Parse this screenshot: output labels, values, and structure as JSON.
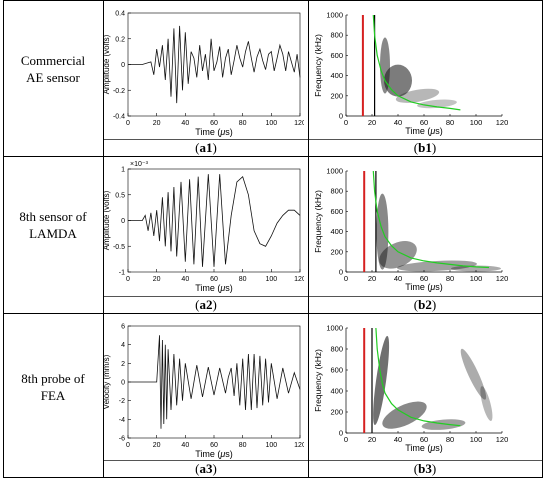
{
  "rows": [
    {
      "label_lines": [
        "Commercial",
        "AE sensor"
      ],
      "left_caption": {
        "open": "(",
        "letter": "a1",
        "close": ")"
      },
      "right_caption": {
        "open": "(",
        "letter": "b1",
        "close": ")"
      },
      "left_plot": {
        "ylabel": "Amplitude (volts)",
        "xlabel_prefix": "Time (",
        "xlabel_mu": "μ",
        "xlabel_suffix": "s)",
        "exponent": "",
        "xticks": [
          "0",
          "20",
          "40",
          "60",
          "80",
          "100",
          "120"
        ],
        "yticks": [
          "0.4",
          "0.2",
          "0",
          "-0.2",
          "-0.4"
        ]
      },
      "right_plot": {
        "ylabel": "Frequency (kHz)",
        "xlabel_prefix": "Time (",
        "xlabel_mu": "μ",
        "xlabel_suffix": "s)",
        "xticks": [
          "0",
          "20",
          "40",
          "60",
          "80",
          "100",
          "120"
        ],
        "yticks": [
          "1000",
          "800",
          "600",
          "400",
          "200",
          "0"
        ]
      }
    },
    {
      "label_lines": [
        "8th sensor of",
        "LAMDA"
      ],
      "left_caption": {
        "open": "(",
        "letter": "a2",
        "close": ")"
      },
      "right_caption": {
        "open": "(",
        "letter": "b2",
        "close": ")"
      },
      "left_plot": {
        "ylabel": "Amplitude (volts)",
        "xlabel_prefix": "Time (",
        "xlabel_mu": "μ",
        "xlabel_suffix": "s)",
        "exponent": "×10⁻³",
        "xticks": [
          "0",
          "20",
          "40",
          "60",
          "80",
          "100",
          "120"
        ],
        "yticks": [
          "1",
          "0.5",
          "0",
          "-0.5",
          "-1"
        ]
      },
      "right_plot": {
        "ylabel": "Frequency (kHz)",
        "xlabel_prefix": "Time (",
        "xlabel_mu": "μ",
        "xlabel_suffix": "s)",
        "xticks": [
          "0",
          "20",
          "40",
          "60",
          "80",
          "100",
          "120"
        ],
        "yticks": [
          "1000",
          "800",
          "600",
          "400",
          "200",
          "0"
        ]
      }
    },
    {
      "label_lines": [
        "8th probe of",
        "FEA"
      ],
      "left_caption": {
        "open": "(",
        "letter": "a3",
        "close": ")"
      },
      "right_caption": {
        "open": "(",
        "letter": "b3",
        "close": ")"
      },
      "left_plot": {
        "ylabel": "Velocity (mm/s)",
        "xlabel_prefix": "Time (",
        "xlabel_mu": "μ",
        "xlabel_suffix": "s)",
        "exponent": "",
        "xticks": [
          "0",
          "20",
          "40",
          "60",
          "80",
          "100",
          "120"
        ],
        "yticks": [
          "6",
          "4",
          "2",
          "0",
          "-2",
          "-4",
          "-6"
        ]
      },
      "right_plot": {
        "ylabel": "Frequency (kHz)",
        "xlabel_prefix": "Time (",
        "xlabel_mu": "μ",
        "xlabel_suffix": "s)",
        "xticks": [
          "0",
          "20",
          "40",
          "60",
          "80",
          "100",
          "120"
        ],
        "yticks": [
          "1000",
          "800",
          "600",
          "400",
          "200",
          "0"
        ]
      }
    }
  ],
  "colors": {
    "red_line": "#d62020",
    "green_curve": "#22cc22",
    "black_line": "#000000",
    "waveform": "#111111"
  },
  "chart_data": [
    {
      "type": "line",
      "name": "a1",
      "xlim": [
        0,
        120
      ],
      "ylim": [
        -0.4,
        0.4
      ],
      "x": [
        0,
        10,
        16,
        18,
        20,
        22,
        24,
        26,
        28,
        30,
        32,
        34,
        36,
        38,
        40,
        42,
        44,
        46,
        48,
        50,
        52,
        54,
        56,
        58,
        60,
        62,
        64,
        66,
        68,
        70,
        72,
        74,
        76,
        78,
        80,
        82,
        84,
        86,
        88,
        90,
        92,
        94,
        96,
        98,
        100,
        102,
        104,
        106,
        108,
        110,
        112,
        114,
        116,
        118,
        120
      ],
      "y": [
        0,
        0,
        0.02,
        -0.08,
        0.12,
        -0.02,
        0.15,
        -0.12,
        0.2,
        -0.25,
        0.28,
        -0.3,
        0.3,
        -0.2,
        0.25,
        -0.15,
        0.1,
        0.05,
        -0.1,
        0.15,
        -0.05,
        0.08,
        -0.12,
        0.2,
        -0.05,
        0.02,
        0.14,
        -0.1,
        0.05,
        0.12,
        -0.08,
        0.03,
        0.15,
        0.05,
        -0.02,
        0.1,
        0.18,
        0.05,
        -0.06,
        0.06,
        0.12,
        0.03,
        -0.04,
        0.08,
        0.1,
        -0.05,
        0.05,
        0.15,
        0.08,
        -0.05,
        0.1,
        0.02,
        -0.06,
        0.08,
        -0.1
      ]
    },
    {
      "type": "line",
      "name": "a2",
      "xlim": [
        0,
        120
      ],
      "ylim": [
        -1,
        1
      ],
      "x": [
        0,
        10,
        12,
        14,
        16,
        18,
        20,
        22,
        24,
        26,
        28,
        30,
        32,
        34,
        37,
        40,
        43,
        46,
        49,
        52,
        56,
        60,
        64,
        68,
        72,
        76,
        80,
        84,
        88,
        92,
        96,
        100,
        104,
        108,
        112,
        116,
        120
      ],
      "y": [
        0,
        0,
        0.1,
        -0.2,
        0.15,
        -0.3,
        0.2,
        -0.4,
        0.45,
        -0.5,
        0.55,
        -0.6,
        0.65,
        -0.7,
        0.75,
        -0.8,
        0.8,
        -0.85,
        0.85,
        -0.9,
        0.9,
        -0.9,
        0.9,
        -0.85,
        0.1,
        0.75,
        0.85,
        0.5,
        -0.2,
        -0.45,
        -0.5,
        -0.3,
        -0.05,
        0.1,
        0.2,
        0.2,
        0.1
      ]
    },
    {
      "type": "line",
      "name": "a3",
      "xlim": [
        0,
        120
      ],
      "ylim": [
        -6,
        6
      ],
      "x": [
        0,
        20,
        22,
        23,
        24,
        25,
        26,
        27,
        28,
        30,
        32,
        34,
        36,
        38,
        40,
        44,
        48,
        52,
        56,
        60,
        64,
        68,
        70,
        72,
        74,
        76,
        78,
        80,
        82,
        84,
        86,
        88,
        90,
        92,
        94,
        96,
        98,
        100,
        104,
        108,
        112,
        116,
        120
      ],
      "y": [
        0,
        0,
        5,
        -5,
        4.5,
        -4.5,
        4,
        -4,
        3.5,
        -3,
        3,
        -2.5,
        2.5,
        -2,
        2,
        -1.8,
        1.8,
        -1.6,
        1.6,
        -1.4,
        1.5,
        -1.2,
        0.5,
        1.5,
        -1.5,
        2,
        -2.5,
        2.5,
        -3,
        3,
        -3,
        3,
        -2.8,
        2.8,
        -2.5,
        2.5,
        -2.2,
        2,
        -1.8,
        1.5,
        -1.2,
        1,
        -0.8
      ]
    },
    {
      "type": "line",
      "name": "b1",
      "xlim": [
        0,
        120
      ],
      "ylim": [
        0,
        1000
      ],
      "vertical_lines": [
        {
          "x": 13,
          "color": "red"
        },
        {
          "x": 22,
          "color": "black"
        }
      ],
      "curve": {
        "x": [
          21,
          22,
          24,
          27,
          30,
          35,
          40,
          50,
          60,
          70,
          80,
          88
        ],
        "y": [
          1000,
          800,
          600,
          450,
          350,
          260,
          200,
          140,
          110,
          90,
          75,
          60
        ]
      }
    },
    {
      "type": "line",
      "name": "b2",
      "xlim": [
        0,
        120
      ],
      "ylim": [
        0,
        1000
      ],
      "vertical_lines": [
        {
          "x": 14,
          "color": "red"
        },
        {
          "x": 23,
          "color": "black"
        }
      ],
      "curve": {
        "x": [
          21,
          22,
          24,
          27,
          30,
          35,
          40,
          50,
          60,
          70,
          80,
          90,
          100,
          110
        ],
        "y": [
          1000,
          800,
          600,
          450,
          350,
          260,
          200,
          140,
          110,
          90,
          75,
          60,
          50,
          45
        ]
      }
    },
    {
      "type": "line",
      "name": "b3",
      "xlim": [
        0,
        120
      ],
      "ylim": [
        0,
        1000
      ],
      "vertical_lines": [
        {
          "x": 14,
          "color": "red"
        },
        {
          "x": 20,
          "color": "black"
        }
      ],
      "curve": {
        "x": [
          23,
          24,
          26,
          28,
          30,
          35,
          40,
          50,
          60,
          70,
          80,
          88
        ],
        "y": [
          1000,
          800,
          600,
          470,
          380,
          280,
          220,
          150,
          115,
          95,
          80,
          70
        ]
      }
    }
  ]
}
